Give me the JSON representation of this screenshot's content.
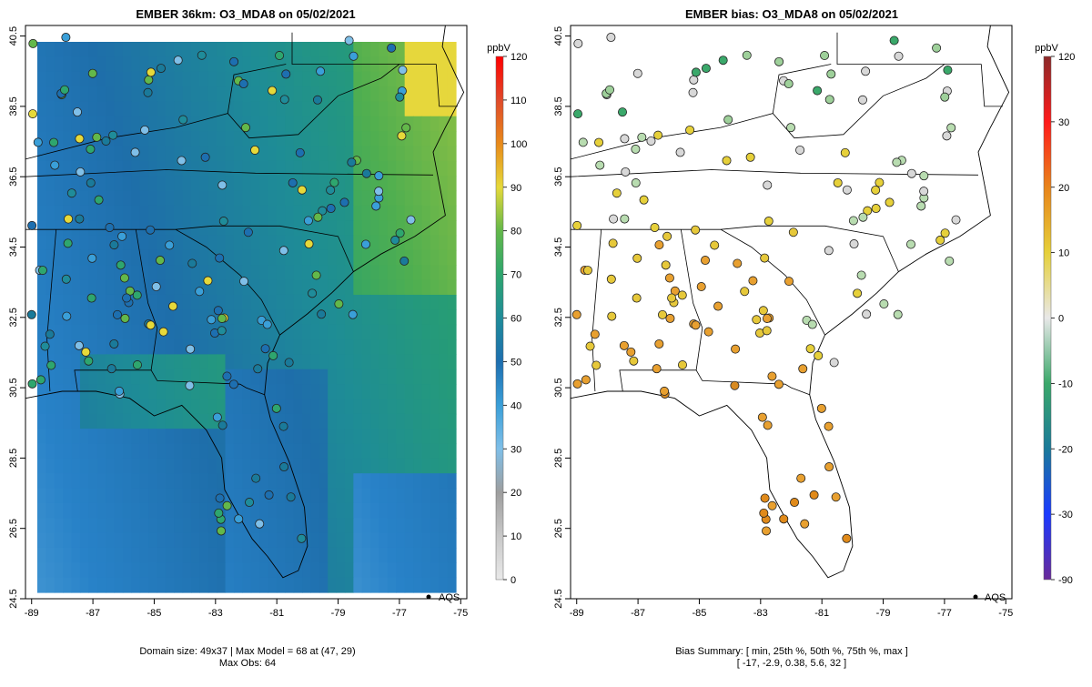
{
  "panels": [
    {
      "title": "EMBER 36km: O3_MDA8 on 05/02/2021",
      "colorbar": {
        "unit": "ppbV",
        "ticks": [
          "0",
          "10",
          "20",
          "30",
          "40",
          "50",
          "60",
          "70",
          "80",
          "90",
          "100",
          "110",
          "120"
        ],
        "colors": [
          "#e9e9e9",
          "#c8c8c8",
          "#9e9e9e",
          "#7fbfe8",
          "#3a9fd8",
          "#1d6fb0",
          "#1f8c9a",
          "#2ea66e",
          "#63b84a",
          "#e6d93a",
          "#e88a1a",
          "#e04a2a",
          "#ff0000"
        ]
      },
      "footer_lines": [
        "Domain size: 49x37 | Max Model = 68 at (47, 29)",
        "Max Obs: 64"
      ],
      "legend_label": "AQS"
    },
    {
      "title": "EMBER bias: O3_MDA8 on 05/02/2021",
      "colorbar": {
        "unit": "ppbV",
        "ticks": [
          "120",
          "30",
          "20",
          "10",
          "0",
          "-10",
          "-20",
          "-30",
          "-90"
        ],
        "colors": [
          "#8b2a2a",
          "#ff1a1a",
          "#e8841a",
          "#e6d03a",
          "#e8e8e8",
          "#3aa86a",
          "#1a7a9a",
          "#1a3aff",
          "#6a2a9a"
        ]
      },
      "footer_lines": [
        "Bias Summary: [ min, 25th %, 50th %, 75th %, max ]",
        "[ -17,   -2.9,   0.38,   5.6,   32 ]"
      ],
      "legend_label": "AQS"
    }
  ],
  "axes": {
    "x_ticks": [
      "-89",
      "-87",
      "-85",
      "-83",
      "-81",
      "-79",
      "-77",
      "-75"
    ],
    "y_ticks": [
      "40.5",
      "38.5",
      "36.5",
      "34.5",
      "32.5",
      "30.5",
      "28.5",
      "26.5",
      "24.5"
    ],
    "lon_range": [
      -89.2,
      -74.8
    ],
    "lat_range": [
      24.5,
      40.8
    ]
  }
}
